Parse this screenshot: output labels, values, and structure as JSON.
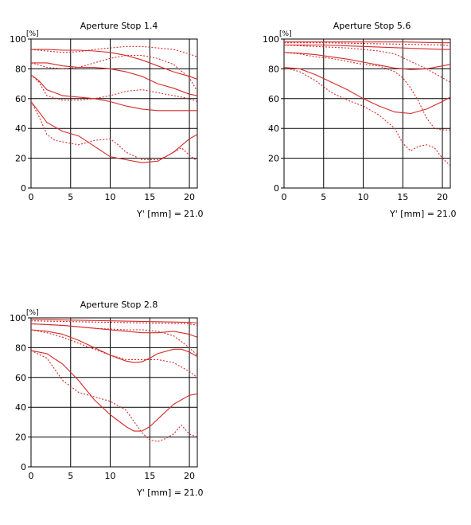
{
  "chart_data": [
    {
      "type": "line",
      "title": "Aperture Stop 1.4",
      "ylabel": "[%]",
      "xlabel": "Y' [mm] =",
      "xlabel_value": "21.0",
      "xlim": [
        0,
        21
      ],
      "ylim": [
        0,
        100
      ],
      "xticks": [
        0,
        5,
        10,
        15,
        20
      ],
      "yticks": [
        0,
        20,
        40,
        60,
        80,
        100
      ],
      "grid": true,
      "color": "#d42a2a",
      "series": [
        {
          "style": "solid",
          "x": [
            0,
            2,
            4,
            6,
            8,
            10,
            12,
            14,
            16,
            18,
            20,
            21
          ],
          "y": [
            93,
            93,
            92.5,
            92.5,
            92,
            91,
            89,
            86,
            82,
            78,
            75,
            73
          ]
        },
        {
          "style": "dotted",
          "x": [
            0,
            2,
            4,
            6,
            8,
            10,
            12,
            14,
            16,
            18,
            20,
            21
          ],
          "y": [
            93,
            92,
            91,
            91.5,
            93,
            94,
            95,
            95,
            94,
            93,
            90,
            88
          ]
        },
        {
          "style": "solid",
          "x": [
            0,
            2,
            4,
            6,
            8,
            10,
            12,
            14,
            16,
            18,
            20,
            21
          ],
          "y": [
            84,
            84,
            82,
            81,
            81,
            80,
            78,
            75,
            70,
            67,
            63,
            62
          ]
        },
        {
          "style": "dotted",
          "x": [
            0,
            2,
            4,
            6,
            8,
            10,
            12,
            14,
            16,
            18,
            20,
            21
          ],
          "y": [
            84,
            81,
            80,
            81,
            84,
            87,
            89,
            89,
            87,
            83,
            74,
            65
          ]
        },
        {
          "style": "solid",
          "x": [
            0,
            1,
            2,
            4,
            6,
            8,
            10,
            12,
            14,
            16,
            18,
            20,
            21
          ],
          "y": [
            76,
            72,
            66,
            62,
            61,
            60,
            58,
            55,
            53,
            52,
            52,
            52,
            52
          ]
        },
        {
          "style": "dotted",
          "x": [
            0,
            1,
            2,
            4,
            6,
            8,
            10,
            12,
            14,
            16,
            18,
            20,
            21
          ],
          "y": [
            76,
            71,
            62,
            59,
            59,
            60,
            62,
            65,
            66,
            64,
            62,
            60,
            58
          ]
        },
        {
          "style": "solid",
          "x": [
            0,
            1,
            2,
            4,
            6,
            8,
            10,
            12,
            14,
            16,
            18,
            20,
            21
          ],
          "y": [
            58,
            51,
            44,
            38,
            35,
            28,
            21,
            19,
            17,
            18,
            24,
            33,
            36
          ]
        },
        {
          "style": "dotted",
          "x": [
            0,
            1,
            2,
            3,
            4,
            6,
            8,
            10,
            11,
            12,
            14,
            16,
            17,
            18,
            19,
            20,
            21
          ],
          "y": [
            58,
            48,
            36,
            32,
            31,
            29,
            32,
            33,
            29,
            24,
            19,
            19,
            21,
            24,
            27,
            22,
            18
          ]
        }
      ]
    },
    {
      "type": "line",
      "title": "Aperture Stop 5.6",
      "ylabel": "[%]",
      "xlabel": "Y' [mm] =",
      "xlabel_value": "21.0",
      "xlim": [
        0,
        21
      ],
      "ylim": [
        0,
        100
      ],
      "xticks": [
        0,
        5,
        10,
        15,
        20
      ],
      "yticks": [
        0,
        20,
        40,
        60,
        80,
        100
      ],
      "grid": true,
      "color": "#d42a2a",
      "series": [
        {
          "style": "solid",
          "x": [
            0,
            5,
            10,
            15,
            20,
            21
          ],
          "y": [
            98,
            98,
            98,
            98,
            97.5,
            97.5
          ]
        },
        {
          "style": "dotted",
          "x": [
            0,
            5,
            10,
            15,
            20,
            21
          ],
          "y": [
            97.5,
            97.5,
            97,
            96.5,
            96,
            95.5
          ]
        },
        {
          "style": "solid",
          "x": [
            0,
            5,
            10,
            15,
            20,
            21
          ],
          "y": [
            96,
            96,
            95,
            94,
            93,
            93
          ]
        },
        {
          "style": "dotted",
          "x": [
            0,
            4,
            8,
            12,
            14,
            16,
            18,
            20,
            21
          ],
          "y": [
            96,
            95,
            94,
            92,
            90,
            85,
            80,
            74,
            71
          ]
        },
        {
          "style": "solid",
          "x": [
            0,
            2,
            4,
            6,
            8,
            10,
            12,
            14,
            16,
            18,
            20,
            21
          ],
          "y": [
            91,
            90.5,
            89.5,
            88,
            86.5,
            84.5,
            82.5,
            80.5,
            79.5,
            80,
            82,
            83
          ]
        },
        {
          "style": "dotted",
          "x": [
            0,
            2,
            4,
            6,
            8,
            10,
            12,
            14,
            15,
            16,
            17,
            18,
            19,
            20,
            21
          ],
          "y": [
            91,
            90,
            88,
            87,
            85,
            83,
            82,
            78,
            74,
            67,
            58,
            47,
            40,
            39,
            39
          ]
        },
        {
          "style": "solid",
          "x": [
            0,
            2,
            4,
            6,
            8,
            10,
            12,
            14,
            16,
            18,
            20,
            21
          ],
          "y": [
            81,
            80,
            76,
            71,
            66,
            60,
            55,
            51,
            50,
            53,
            58,
            61
          ]
        },
        {
          "style": "dotted",
          "x": [
            0,
            2,
            4,
            6,
            8,
            10,
            12,
            14,
            15,
            16,
            17,
            18,
            19,
            20,
            21
          ],
          "y": [
            81,
            78,
            72,
            64,
            59,
            55,
            49,
            40,
            30,
            25,
            28,
            29,
            27,
            20,
            15
          ]
        }
      ]
    },
    {
      "type": "line",
      "title": "Aperture Stop 2.8",
      "ylabel": "[%]",
      "xlabel": "Y' [mm] =",
      "xlabel_value": "21.0",
      "xlim": [
        0,
        21
      ],
      "ylim": [
        0,
        100
      ],
      "xticks": [
        0,
        5,
        10,
        15,
        20
      ],
      "yticks": [
        0,
        20,
        40,
        60,
        80,
        100
      ],
      "grid": true,
      "color": "#d42a2a",
      "series": [
        {
          "style": "solid",
          "x": [
            0,
            5,
            10,
            15,
            20,
            21
          ],
          "y": [
            99,
            98.5,
            98,
            97.5,
            97,
            96.5
          ]
        },
        {
          "style": "dotted",
          "x": [
            0,
            5,
            10,
            15,
            20,
            21
          ],
          "y": [
            98,
            97.5,
            97,
            96.5,
            96,
            95
          ]
        },
        {
          "style": "solid",
          "x": [
            0,
            2,
            4,
            6,
            8,
            10,
            12,
            14,
            16,
            18,
            20,
            21
          ],
          "y": [
            96,
            95.5,
            95,
            94,
            93,
            92,
            91,
            90,
            90,
            91,
            89,
            87
          ]
        },
        {
          "style": "dotted",
          "x": [
            0,
            4,
            8,
            12,
            14,
            16,
            18,
            20,
            21
          ],
          "y": [
            96,
            95,
            93,
            92,
            92,
            91,
            88,
            80,
            75
          ]
        },
        {
          "style": "solid",
          "x": [
            0,
            2,
            4,
            6,
            8,
            10,
            12,
            13,
            14,
            15,
            16,
            18,
            19,
            20,
            21
          ],
          "y": [
            92,
            91,
            89,
            85,
            80,
            75,
            71,
            70,
            70.5,
            73,
            76,
            79,
            79,
            77,
            74
          ]
        },
        {
          "style": "dotted",
          "x": [
            0,
            2,
            4,
            6,
            8,
            10,
            12,
            14,
            16,
            18,
            20,
            21
          ],
          "y": [
            92,
            90,
            87,
            83,
            79,
            75,
            72,
            72,
            72,
            70,
            64,
            60
          ]
        },
        {
          "style": "solid",
          "x": [
            0,
            2,
            4,
            6,
            8,
            10,
            12,
            13,
            14,
            15,
            16,
            18,
            20,
            21
          ],
          "y": [
            78,
            76,
            69,
            58,
            45,
            35,
            27,
            24,
            24,
            27,
            32,
            42,
            48,
            49
          ]
        },
        {
          "style": "dotted",
          "x": [
            0,
            2,
            4,
            6,
            8,
            10,
            12,
            14,
            15,
            16,
            17,
            18,
            19,
            20,
            21
          ],
          "y": [
            78,
            73,
            58,
            50,
            47,
            44,
            38,
            23,
            18,
            17,
            19,
            22,
            28,
            22,
            20
          ]
        }
      ]
    }
  ]
}
